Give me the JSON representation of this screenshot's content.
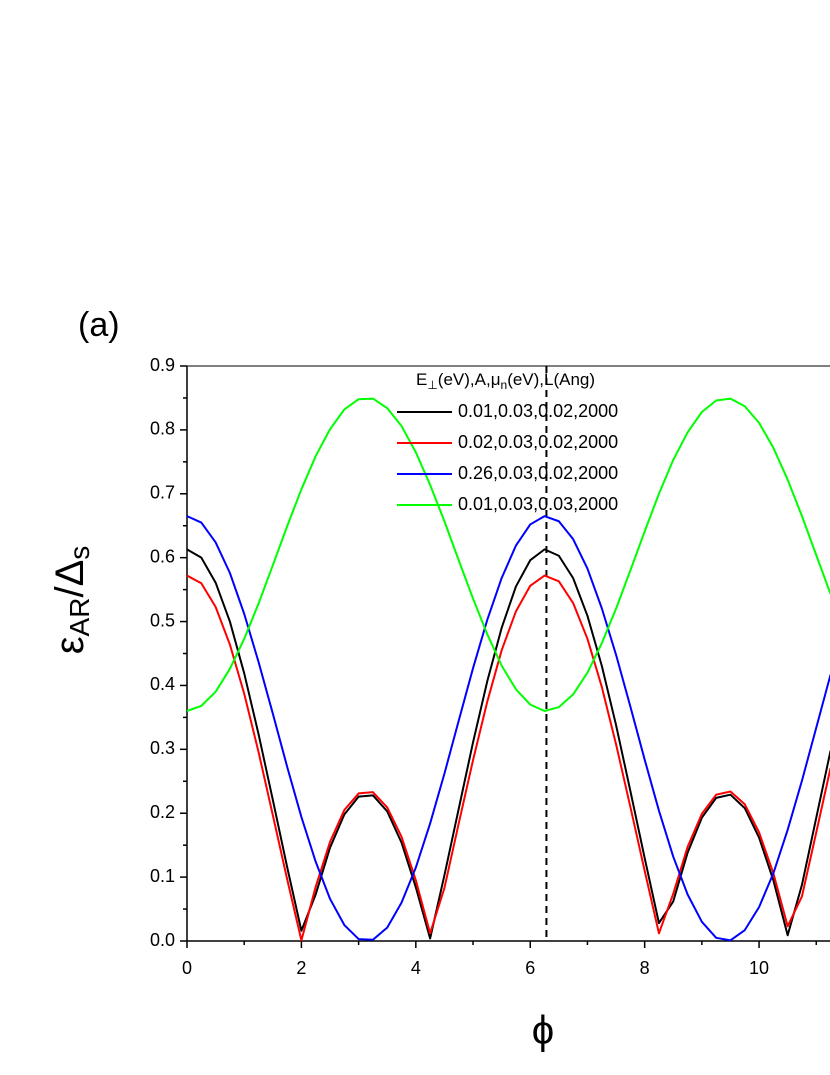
{
  "chart_data": {
    "type": "line",
    "panel_label": "(a)",
    "x_label": "ϕ",
    "y_label_parts": [
      "ε",
      "AR",
      "/Δ",
      "s"
    ],
    "legend_title_parts": [
      "E",
      "⊥",
      "(eV),A,μ",
      "n",
      "(eV),L(Ang)"
    ],
    "x": [
      0,
      0.25,
      0.5,
      0.75,
      1,
      1.25,
      1.5,
      1.75,
      2,
      2.25,
      2.5,
      2.75,
      3,
      3.25,
      3.5,
      3.75,
      4,
      4.25,
      4.5,
      4.75,
      5,
      5.25,
      5.5,
      5.75,
      6,
      6.25,
      6.5,
      6.75,
      7,
      7.25,
      7.5,
      7.75,
      8,
      8.25,
      8.5,
      8.75,
      9,
      9.25,
      9.5,
      9.75,
      10,
      10.25,
      10.5,
      10.75,
      11,
      11.25
    ],
    "series": [
      {
        "name": "0.01,0.03,0.02,2000",
        "color": "#000000",
        "values": [
          0.613,
          0.6,
          0.561,
          0.5,
          0.419,
          0.324,
          0.221,
          0.116,
          0.016,
          0.073,
          0.146,
          0.198,
          0.226,
          0.228,
          0.203,
          0.154,
          0.084,
          0.004,
          0.103,
          0.207,
          0.311,
          0.407,
          0.49,
          0.555,
          0.596,
          0.613,
          0.603,
          0.568,
          0.509,
          0.431,
          0.338,
          0.235,
          0.13,
          0.028,
          0.062,
          0.138,
          0.193,
          0.224,
          0.229,
          0.208,
          0.162,
          0.095,
          0.009,
          0.088,
          0.193,
          0.298
        ]
      },
      {
        "name": "0.02,0.03,0.02,2000",
        "color": "#ff0000",
        "values": [
          0.572,
          0.56,
          0.523,
          0.464,
          0.387,
          0.296,
          0.197,
          0.097,
          0.001,
          0.085,
          0.155,
          0.205,
          0.231,
          0.233,
          0.209,
          0.163,
          0.095,
          0.012,
          0.083,
          0.184,
          0.283,
          0.375,
          0.455,
          0.516,
          0.556,
          0.572,
          0.563,
          0.529,
          0.473,
          0.398,
          0.308,
          0.21,
          0.11,
          0.012,
          0.074,
          0.147,
          0.199,
          0.229,
          0.234,
          0.214,
          0.17,
          0.106,
          0.023,
          0.07,
          0.17,
          0.271
        ]
      },
      {
        "name": "0.26,0.03,0.02,2000",
        "color": "#0000ff",
        "values": [
          0.665,
          0.655,
          0.624,
          0.576,
          0.512,
          0.437,
          0.356,
          0.273,
          0.194,
          0.124,
          0.066,
          0.025,
          0.003,
          0.002,
          0.021,
          0.06,
          0.115,
          0.184,
          0.262,
          0.345,
          0.427,
          0.503,
          0.568,
          0.619,
          0.652,
          0.665,
          0.657,
          0.629,
          0.583,
          0.521,
          0.448,
          0.367,
          0.284,
          0.204,
          0.132,
          0.073,
          0.03,
          0.005,
          0.001,
          0.017,
          0.053,
          0.106,
          0.174,
          0.251,
          0.334,
          0.417
        ]
      },
      {
        "name": "0.01,0.03,0.03,2000",
        "color": "#00ff00",
        "values": [
          0.36,
          0.368,
          0.39,
          0.426,
          0.473,
          0.528,
          0.588,
          0.649,
          0.707,
          0.759,
          0.801,
          0.832,
          0.848,
          0.849,
          0.834,
          0.806,
          0.765,
          0.714,
          0.657,
          0.596,
          0.536,
          0.48,
          0.431,
          0.394,
          0.37,
          0.36,
          0.366,
          0.386,
          0.42,
          0.466,
          0.52,
          0.58,
          0.641,
          0.7,
          0.753,
          0.796,
          0.828,
          0.846,
          0.849,
          0.837,
          0.811,
          0.772,
          0.722,
          0.665,
          0.604,
          0.543
        ]
      }
    ],
    "vline": 6.283,
    "xlim": [
      0,
      11.24
    ],
    "xticks": [
      0,
      2,
      4,
      6,
      8,
      10
    ],
    "ylim": [
      0,
      0.9
    ],
    "yticks": [
      {
        "value": 0,
        "label": "0.0"
      },
      0.1,
      0.2,
      0.3,
      0.4,
      0.5,
      0.6,
      0.7,
      0.8,
      0.9
    ]
  }
}
